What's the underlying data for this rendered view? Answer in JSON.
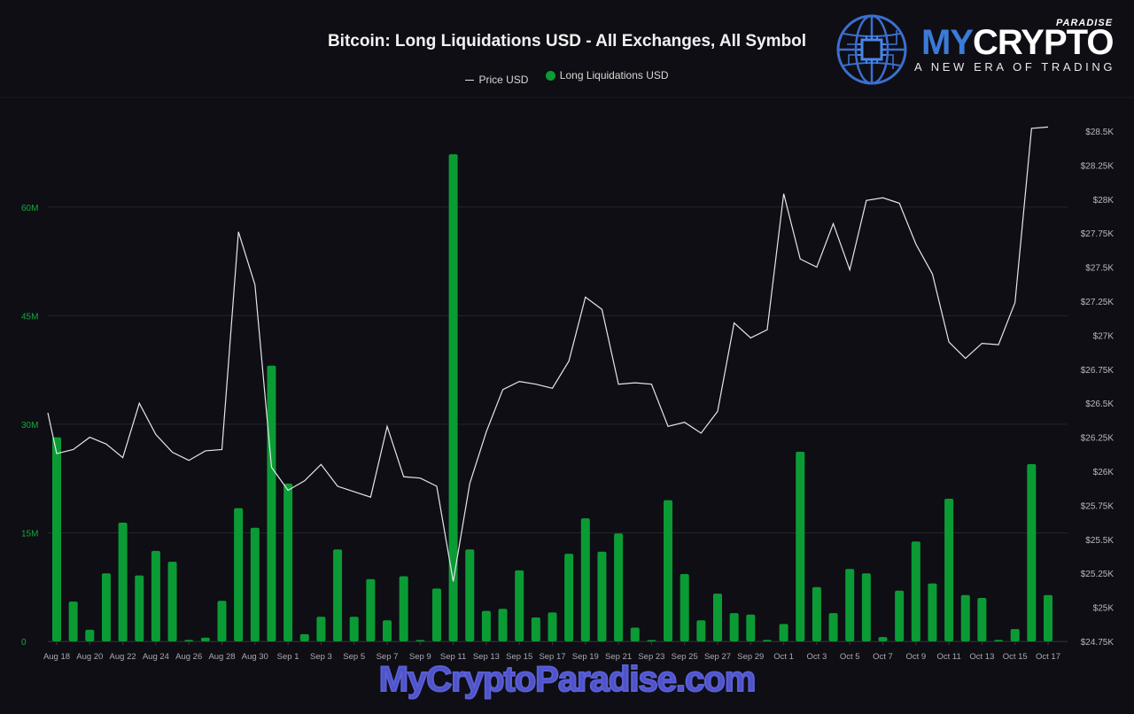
{
  "header": {
    "title": "Bitcoin: Long Liquidations USD - All Exchanges, All Symbol"
  },
  "legend": [
    {
      "label": "Price USD",
      "type": "line",
      "color": "#e0e0e0"
    },
    {
      "label": "Long Liquidations USD",
      "type": "dot",
      "color": "#0b9b35"
    }
  ],
  "logo": {
    "brand_my": "MY",
    "brand_crypto": "CRYPTO",
    "paradise": "PARADISE",
    "tagline": "A NEW ERA OF TRADING"
  },
  "watermark": "MyCryptoParadise.com",
  "colors": {
    "background": "#0f0e14",
    "bar": "#0b9b35",
    "line": "#e6e6ea",
    "grid": "#26252d",
    "left_axis_text": "#13a83b",
    "right_axis_text": "#b8b8c0",
    "x_axis_text": "#a9a9b2"
  },
  "chart_data": {
    "type": "bar+line",
    "title": "Bitcoin: Long Liquidations USD - All Exchanges, All Symbol",
    "xlabel": "",
    "ylabel_left": "Long Liquidations USD",
    "ylabel_right": "Price USD",
    "ylim_left": [
      0,
      75
    ],
    "ylim_right": [
      24750,
      28650
    ],
    "left_ticks": [
      "0",
      "15M",
      "30M",
      "45M",
      "60M"
    ],
    "left_tick_values": [
      0,
      15,
      30,
      45,
      60
    ],
    "right_ticks": [
      "$24.75K",
      "$25K",
      "$25.25K",
      "$25.5K",
      "$25.75K",
      "$26K",
      "$26.25K",
      "$26.5K",
      "$26.75K",
      "$27K",
      "$27.25K",
      "$27.5K",
      "$27.75K",
      "$28K",
      "$28.25K",
      "$28.5K"
    ],
    "right_tick_values": [
      24750,
      25000,
      25250,
      25500,
      25750,
      26000,
      26250,
      26500,
      26750,
      27000,
      27250,
      27500,
      27750,
      28000,
      28250,
      28500
    ],
    "x_tick_labels": [
      "Aug 18",
      "Aug 20",
      "Aug 22",
      "Aug 24",
      "Aug 26",
      "Aug 28",
      "Aug 30",
      "Sep 1",
      "Sep 3",
      "Sep 5",
      "Sep 7",
      "Sep 9",
      "Sep 11",
      "Sep 13",
      "Sep 15",
      "Sep 17",
      "Sep 19",
      "Sep 21",
      "Sep 23",
      "Sep 25",
      "Sep 27",
      "Sep 29",
      "Oct 1",
      "Oct 3",
      "Oct 5",
      "Oct 7",
      "Oct 9",
      "Oct 11",
      "Oct 13",
      "Oct 15",
      "Oct 17"
    ],
    "grid": true,
    "legend_position": "top",
    "categories": [
      "Aug 18",
      "Aug 19",
      "Aug 20",
      "Aug 21",
      "Aug 22",
      "Aug 23",
      "Aug 24",
      "Aug 25",
      "Aug 26",
      "Aug 27",
      "Aug 28",
      "Aug 29",
      "Aug 30",
      "Aug 31",
      "Sep 1",
      "Sep 2",
      "Sep 3",
      "Sep 4",
      "Sep 5",
      "Sep 6",
      "Sep 7",
      "Sep 8",
      "Sep 9",
      "Sep 10",
      "Sep 11",
      "Sep 12",
      "Sep 13",
      "Sep 14",
      "Sep 15",
      "Sep 16",
      "Sep 17",
      "Sep 18",
      "Sep 19",
      "Sep 20",
      "Sep 21",
      "Sep 22",
      "Sep 23",
      "Sep 24",
      "Sep 25",
      "Sep 26",
      "Sep 27",
      "Sep 28",
      "Sep 29",
      "Sep 30",
      "Oct 1",
      "Oct 2",
      "Oct 3",
      "Oct 4",
      "Oct 5",
      "Oct 6",
      "Oct 7",
      "Oct 8",
      "Oct 9",
      "Oct 10",
      "Oct 11",
      "Oct 12",
      "Oct 13",
      "Oct 14",
      "Oct 15",
      "Oct 16",
      "Oct 17"
    ],
    "series": [
      {
        "name": "Long Liquidations USD",
        "type": "bar",
        "unit": "M USD",
        "axis": "left",
        "values": [
          28.2,
          5.5,
          1.6,
          9.4,
          16.4,
          9.1,
          12.5,
          11.0,
          0.2,
          0.5,
          5.6,
          18.4,
          15.7,
          38.1,
          21.8,
          1.0,
          3.4,
          12.7,
          3.4,
          8.6,
          2.9,
          9.0,
          0.1,
          7.3,
          67.3,
          12.7,
          4.2,
          4.5,
          9.8,
          3.3,
          4.0,
          12.1,
          17.0,
          12.4,
          14.9,
          1.9,
          0.1,
          19.5,
          9.3,
          2.9,
          6.6,
          3.9,
          3.7,
          0.2,
          2.4,
          26.2,
          7.5,
          3.9,
          10.0,
          9.4,
          0.6,
          7.0,
          13.8,
          8.0,
          19.7,
          6.4,
          6.0,
          0.2,
          1.7,
          24.5,
          6.4
        ]
      },
      {
        "name": "Price USD",
        "type": "line",
        "axis": "right",
        "start_value_aug17": 26430,
        "values": [
          26130,
          26160,
          26250,
          26200,
          26100,
          26500,
          26270,
          26140,
          26080,
          26150,
          26160,
          27760,
          27370,
          26030,
          25860,
          25930,
          26050,
          25890,
          25850,
          25810,
          26330,
          25960,
          25950,
          25890,
          25190,
          25910,
          26290,
          26600,
          26660,
          26640,
          26610,
          26810,
          27280,
          27190,
          26640,
          26650,
          26640,
          26330,
          26360,
          26280,
          26440,
          27090,
          26980,
          27040,
          28040,
          27560,
          27500,
          27820,
          27480,
          27990,
          28010,
          27970,
          27670,
          27450,
          26950,
          26830,
          26940,
          26930,
          27240,
          28520,
          28530
        ]
      }
    ]
  }
}
